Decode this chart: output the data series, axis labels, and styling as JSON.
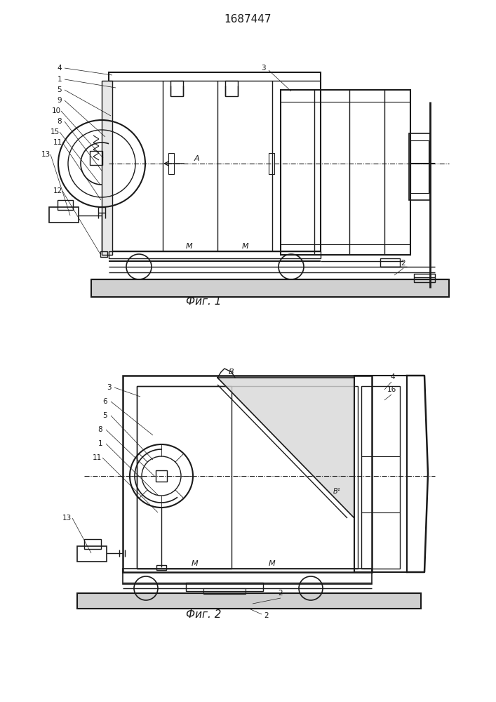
{
  "title": "1687447",
  "fig1_caption": "Фиг. 1",
  "fig2_caption": "Фиг. 2",
  "bg_color": "#ffffff",
  "lc": "#1a1a1a",
  "lw": 1.0
}
